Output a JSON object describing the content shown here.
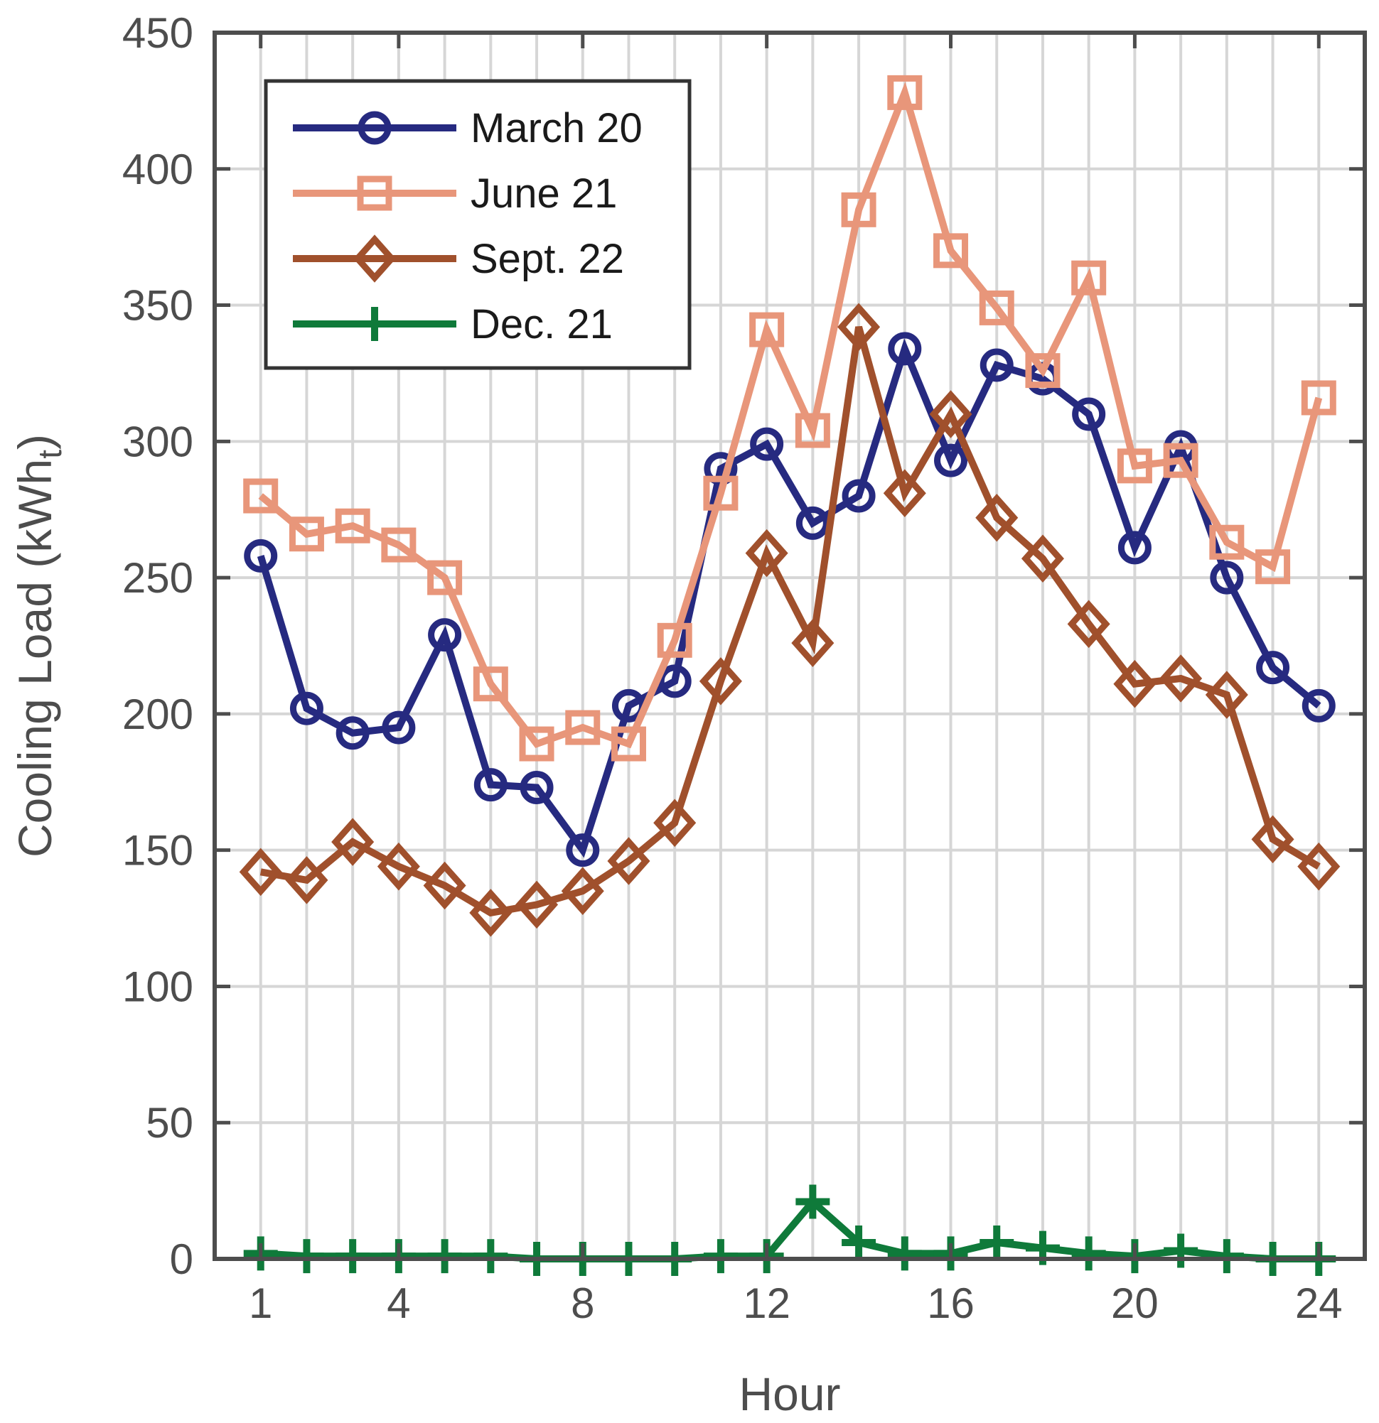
{
  "chart_data": {
    "type": "line",
    "title": "",
    "xlabel": "Hour",
    "ylabel": "Cooling Load (kWh",
    "ylabel_subscript": "t",
    "ylabel_close": ")",
    "xlim": [
      0,
      25
    ],
    "ylim": [
      0,
      450
    ],
    "xticks": [
      1,
      4,
      8,
      12,
      16,
      20,
      24
    ],
    "yticks": [
      0,
      50,
      100,
      150,
      200,
      250,
      300,
      350,
      400,
      450
    ],
    "x_gridlines": [
      1,
      2,
      3,
      4,
      5,
      6,
      7,
      8,
      9,
      10,
      11,
      12,
      13,
      14,
      15,
      16,
      17,
      18,
      19,
      20,
      21,
      22,
      23,
      24
    ],
    "grid": true,
    "legend_position": "top-left",
    "x": [
      1,
      2,
      3,
      4,
      5,
      6,
      7,
      8,
      9,
      10,
      11,
      12,
      13,
      14,
      15,
      16,
      17,
      18,
      19,
      20,
      21,
      22,
      23,
      24
    ],
    "series": [
      {
        "name": "March 20",
        "color": "#262a80",
        "marker": "circle",
        "values": [
          258,
          202,
          193,
          195,
          229,
          174,
          173,
          150,
          203,
          212,
          290,
          299,
          270,
          280,
          334,
          293,
          328,
          323,
          310,
          261,
          298,
          250,
          217,
          203
        ]
      },
      {
        "name": "June 21",
        "color": "#e8967a",
        "marker": "square",
        "values": [
          280,
          266,
          269,
          262,
          250,
          211,
          189,
          195,
          189,
          227,
          281,
          341,
          304,
          385,
          428,
          370,
          349,
          326,
          360,
          291,
          293,
          263,
          254,
          316
        ]
      },
      {
        "name": "Sept. 22",
        "color": "#a0502c",
        "marker": "diamond",
        "values": [
          142,
          139,
          153,
          144,
          137,
          127,
          130,
          135,
          146,
          160,
          212,
          259,
          226,
          342,
          281,
          310,
          272,
          257,
          233,
          211,
          213,
          207,
          154,
          144
        ]
      },
      {
        "name": "Dec. 21",
        "color": "#0f7a3a",
        "marker": "plus",
        "values": [
          2,
          1,
          1,
          1,
          1,
          1,
          0,
          0,
          0,
          0,
          1,
          1,
          21,
          6,
          2,
          2,
          6,
          4,
          2,
          1,
          3,
          1,
          0,
          0
        ]
      }
    ]
  }
}
